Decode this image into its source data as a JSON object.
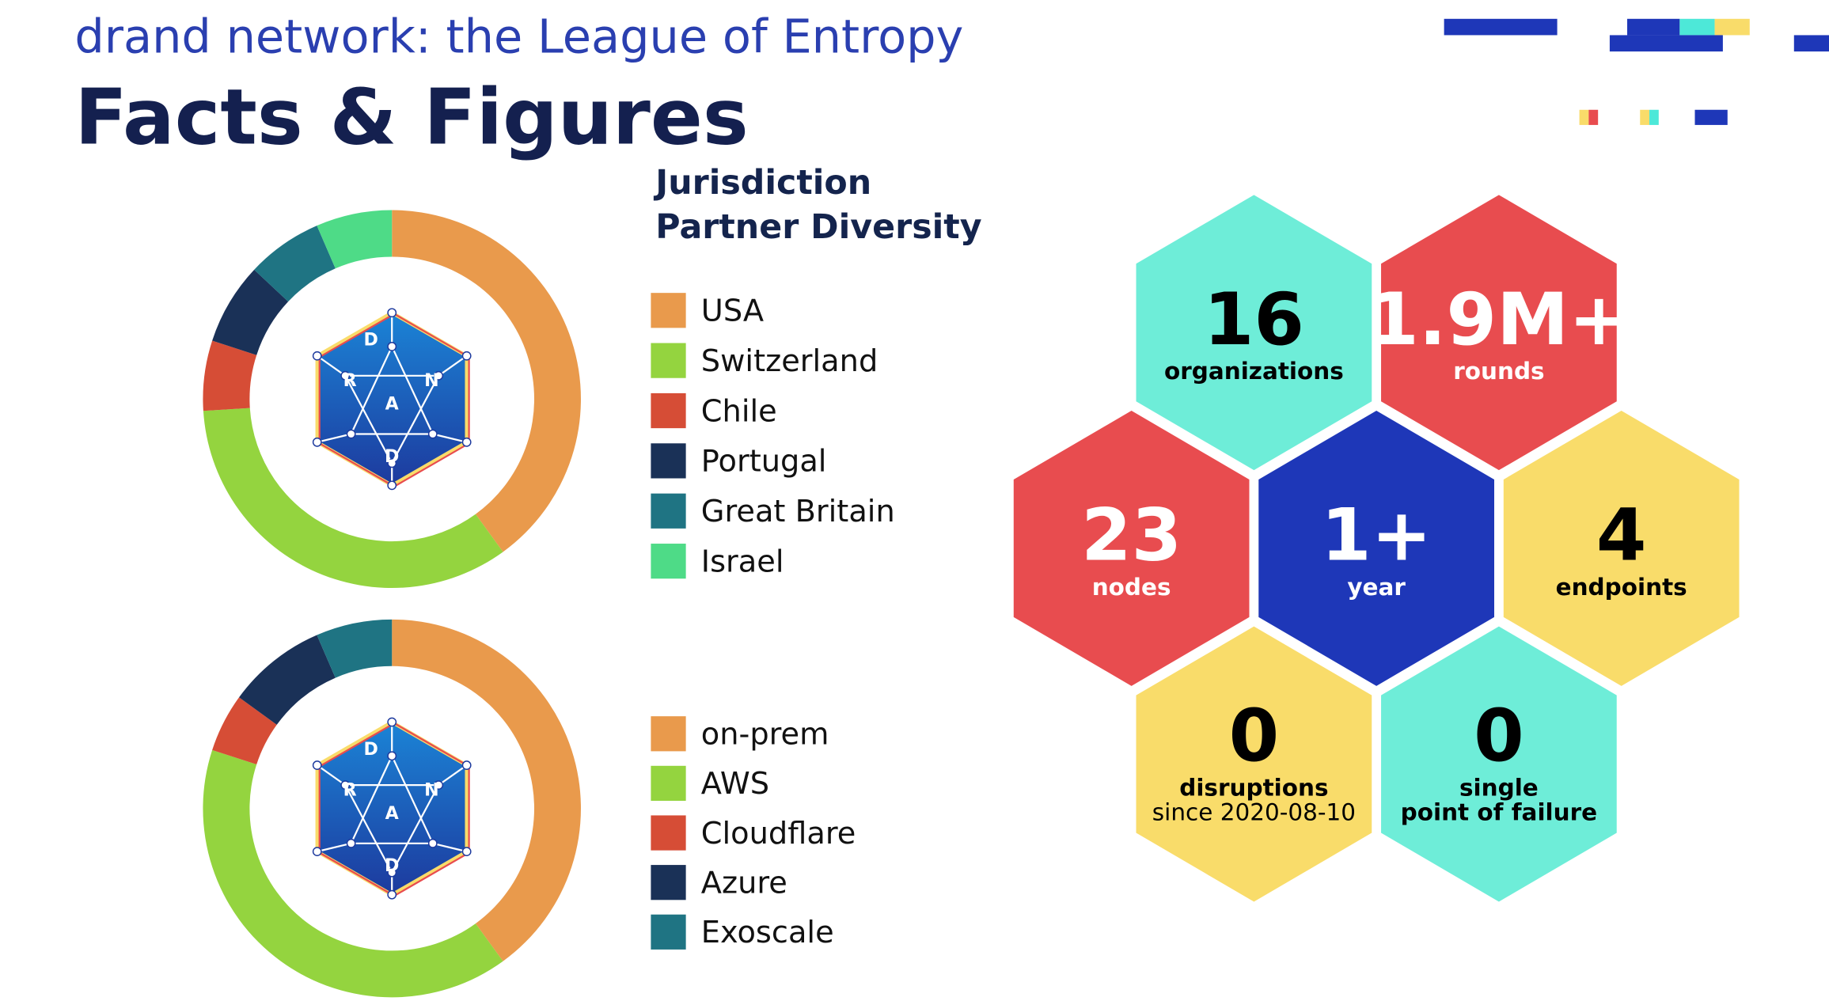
{
  "header": {
    "subtitle": "drand network: the League of Entropy",
    "title": "Facts & Figures"
  },
  "logo": {
    "letters": [
      "D",
      "R",
      "A",
      "N",
      "D"
    ]
  },
  "chart_data": [
    {
      "type": "donut",
      "title": [
        "Jurisdiction",
        "Partner Diversity"
      ],
      "categories": [
        "USA",
        "Switzerland",
        "Chile",
        "Portugal",
        "Great Britain",
        "Israel"
      ],
      "values": [
        40,
        34,
        6,
        7,
        6.5,
        6.5
      ],
      "colors": [
        "#E99A4C",
        "#94D43F",
        "#D64D36",
        "#1A3157",
        "#1F7483",
        "#4EDB87"
      ]
    },
    {
      "type": "donut",
      "categories": [
        "on-prem",
        "AWS",
        "Cloudflare",
        "Azure",
        "Exoscale"
      ],
      "values": [
        40,
        40,
        5,
        8.5,
        6.5
      ],
      "colors": [
        "#E99A4C",
        "#94D43F",
        "#D64D36",
        "#1A3157",
        "#1F7483"
      ]
    }
  ],
  "stats": [
    {
      "value": "16",
      "lines": [
        "organizations"
      ],
      "color": "#6EEDD8",
      "text_color": "#000000"
    },
    {
      "value": "1.9M+",
      "lines": [
        "rounds"
      ],
      "color": "#E84C4F",
      "text_color": "#FFFFFF"
    },
    {
      "value": "23",
      "lines": [
        "nodes"
      ],
      "color": "#E84C4F",
      "text_color": "#FFFFFF"
    },
    {
      "value": "1+",
      "lines": [
        "year"
      ],
      "color": "#1E37B8",
      "text_color": "#FFFFFF"
    },
    {
      "value": "4",
      "lines": [
        "endpoints"
      ],
      "color": "#F9DC6A",
      "text_color": "#000000"
    },
    {
      "value": "0",
      "lines": [
        "disruptions"
      ],
      "note": "since 2020-08-10",
      "color": "#F9DC6A",
      "text_color": "#000000"
    },
    {
      "value": "0",
      "lines": [
        "single",
        "point of failure"
      ],
      "color": "#6EEDD8",
      "text_color": "#000000"
    }
  ]
}
